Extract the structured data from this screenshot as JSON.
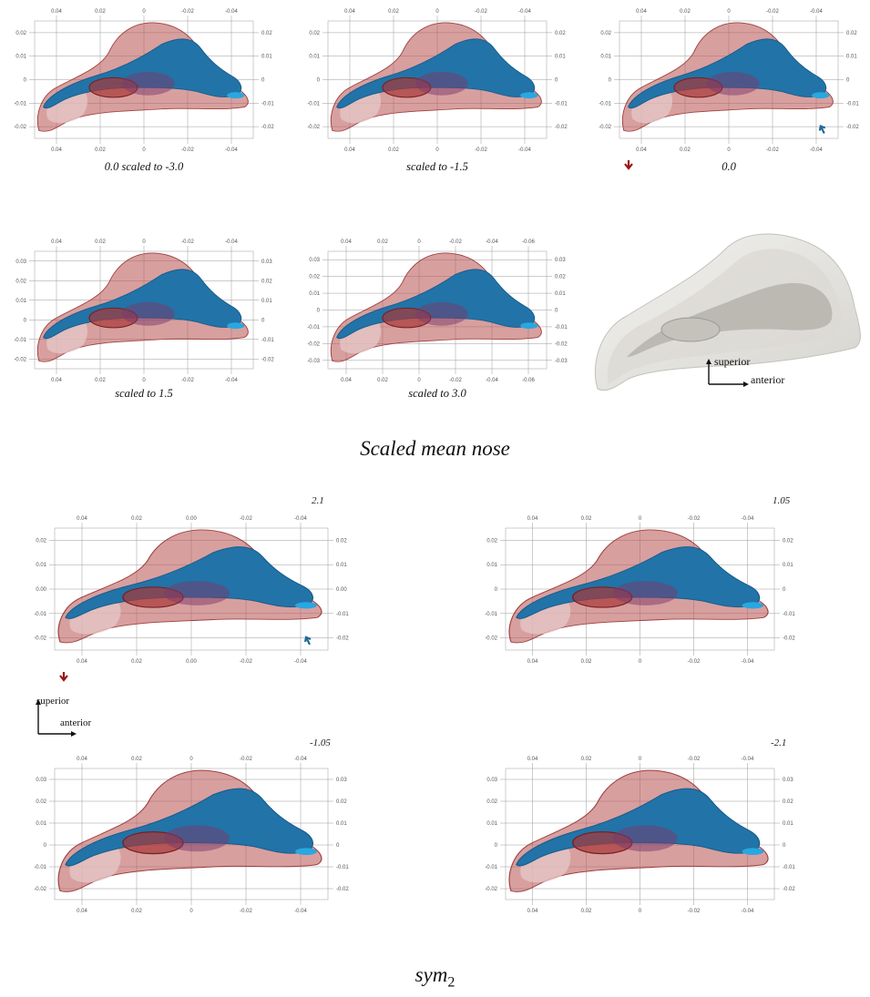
{
  "section1": {
    "title": "Scaled mean nose",
    "panels": [
      {
        "caption": "0.0 scaled to -3.0",
        "xticks": [
          "0.04",
          "0.02",
          "0",
          "-0.02",
          "-0.04"
        ],
        "yticks_left": [
          "0.02",
          "0.01",
          "0",
          "-0.01",
          "-0.02"
        ],
        "yticks_right": [
          "0.02",
          "0.01",
          "0",
          "-0.01",
          "-0.02"
        ]
      },
      {
        "caption": "scaled to -1.5",
        "xticks": [
          "0.04",
          "0.02",
          "0",
          "-0.02",
          "-0.04"
        ],
        "yticks_left": [
          "0.02",
          "0.01",
          "0",
          "-0.01",
          "-0.02"
        ],
        "yticks_right": [
          "0.02",
          "0.01",
          "0",
          "-0.01",
          "-0.02"
        ]
      },
      {
        "caption": "0.0",
        "xticks": [
          "0.04",
          "0.02",
          "0",
          "-0.02",
          "-0.04"
        ],
        "yticks_left": [
          "0.02",
          "0.01",
          "0",
          "-0.01",
          "-0.02"
        ],
        "yticks_right": [
          "0.02",
          "0.01",
          "0",
          "-0.01",
          "-0.02"
        ]
      },
      {
        "caption": "scaled to 1.5",
        "xticks": [
          "0.04",
          "0.02",
          "0",
          "-0.02",
          "-0.04"
        ],
        "yticks_left": [
          "0.03",
          "0.02",
          "0.01",
          "0",
          "-0.01",
          "-0.02"
        ],
        "yticks_right": [
          "0.03",
          "0.02",
          "0.01",
          "0",
          "-0.01",
          "-0.02"
        ]
      },
      {
        "caption": "scaled to 3.0",
        "xticks": [
          "0.04",
          "0.02",
          "0",
          "-0.02",
          "-0.04",
          "-0.06"
        ],
        "yticks_left": [
          "0.03",
          "0.02",
          "0.01",
          "0",
          "-0.01",
          "-0.02",
          "-0.03"
        ],
        "yticks_right": [
          "0.03",
          "0.02",
          "0.01",
          "0",
          "-0.01",
          "-0.02",
          "-0.03"
        ]
      }
    ],
    "orientation": {
      "up": "superior",
      "right": "anterior"
    }
  },
  "section2": {
    "title": "sym",
    "title_subscript": "2",
    "panels": [
      {
        "label": "2.1",
        "xticks": [
          "0.04",
          "0.02",
          "0.00",
          "-0.02",
          "-0.04"
        ],
        "yticks_left": [
          "0.02",
          "0.01",
          "0.00",
          "-0.01",
          "-0.02"
        ],
        "yticks_right": [
          "0.02",
          "0.01",
          "0.00",
          "-0.01",
          "-0.02"
        ]
      },
      {
        "label": "1.05",
        "xticks": [
          "0.04",
          "0.02",
          "0",
          "-0.02",
          "-0.04"
        ],
        "yticks_left": [
          "0.02",
          "0.01",
          "0",
          "-0.01",
          "-0.02"
        ],
        "yticks_right": [
          "0.02",
          "0.01",
          "0",
          "-0.01",
          "-0.02"
        ]
      },
      {
        "label": "-1.05",
        "xticks": [
          "0.04",
          "0.02",
          "0",
          "-0.02",
          "-0.04"
        ],
        "yticks_left": [
          "0.03",
          "0.02",
          "0.01",
          "0",
          "-0.01",
          "-0.02"
        ],
        "yticks_right": [
          "0.03",
          "0.02",
          "0.01",
          "0",
          "-0.01",
          "-0.02"
        ]
      },
      {
        "label": "-2.1",
        "xticks": [
          "0.04",
          "0.02",
          "0",
          "-0.02",
          "-0.04"
        ],
        "yticks_left": [
          "0.03",
          "0.02",
          "0.01",
          "0",
          "-0.01",
          "-0.02"
        ],
        "yticks_right": [
          "0.03",
          "0.02",
          "0.01",
          "0",
          "-0.01",
          "-0.02"
        ]
      }
    ],
    "orientation": {
      "up": "superior",
      "right": "anterior"
    }
  },
  "colors": {
    "outer_shell": "#b85050",
    "inner_cavity": "#2273a8",
    "marker_red": "#9b1212",
    "marker_blue": "#1f6c96",
    "gray_shell": "#d8d6d0"
  }
}
